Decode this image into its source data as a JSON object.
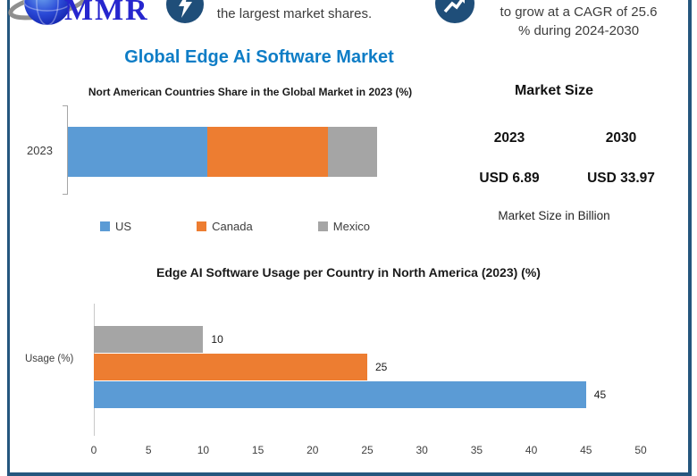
{
  "page": {
    "background": "#FFFFFF",
    "colors": {
      "frame_navy": "#24567E",
      "badge_navy": "#1F4E79",
      "title_blue": "#0E7DC6",
      "logo_blue": "#2626CE"
    }
  },
  "header": {
    "logo_text": "MMR",
    "logo_globe_icon": "globe-icon",
    "left_badge_icon": "bolt-badge-icon",
    "left_note": "the largest market shares.",
    "right_badge_icon": "growth-badge-icon",
    "right_note_line1": "to grow at a CAGR of 25.6",
    "right_note_line2": "% during 2024-2030"
  },
  "title": "Global Edge Ai Software Market",
  "market_size_panel": {
    "heading": "Market Size",
    "year_left": "2023",
    "year_right": "2030",
    "value_left": "USD 6.89",
    "value_right": "USD 33.97",
    "footnote": "Market Size in Billion"
  },
  "chart_data": [
    {
      "type": "bar",
      "subtype": "stacked-horizontal",
      "title": "Nort American Countries Share in the Global Market in 2023 (%)",
      "categories": [
        "2023"
      ],
      "series": [
        {
          "name": "US",
          "values": [
            45
          ],
          "color": "#5B9BD5"
        },
        {
          "name": "Canada",
          "values": [
            39
          ],
          "color": "#ED7D31"
        },
        {
          "name": "Mexico",
          "values": [
            16
          ],
          "color": "#A5A5A5"
        }
      ],
      "legend_position": "bottom",
      "grid": false
    },
    {
      "type": "bar",
      "subtype": "horizontal",
      "title": "Edge AI Software Usage per Country in North America (2023) (%)",
      "categories": [
        "Usage (%)"
      ],
      "series": [
        {
          "name": "Mexico",
          "color": "#A5A5A5",
          "value": 10,
          "label": "10"
        },
        {
          "name": "Canada",
          "color": "#ED7D31",
          "value": 25,
          "label": "25"
        },
        {
          "name": "US",
          "color": "#5B9BD5",
          "value": 45,
          "label": "45"
        }
      ],
      "xlim": [
        0,
        50
      ],
      "xticks": [
        0,
        5,
        10,
        15,
        20,
        25,
        30,
        35,
        40,
        45,
        50
      ],
      "grid": false
    }
  ]
}
